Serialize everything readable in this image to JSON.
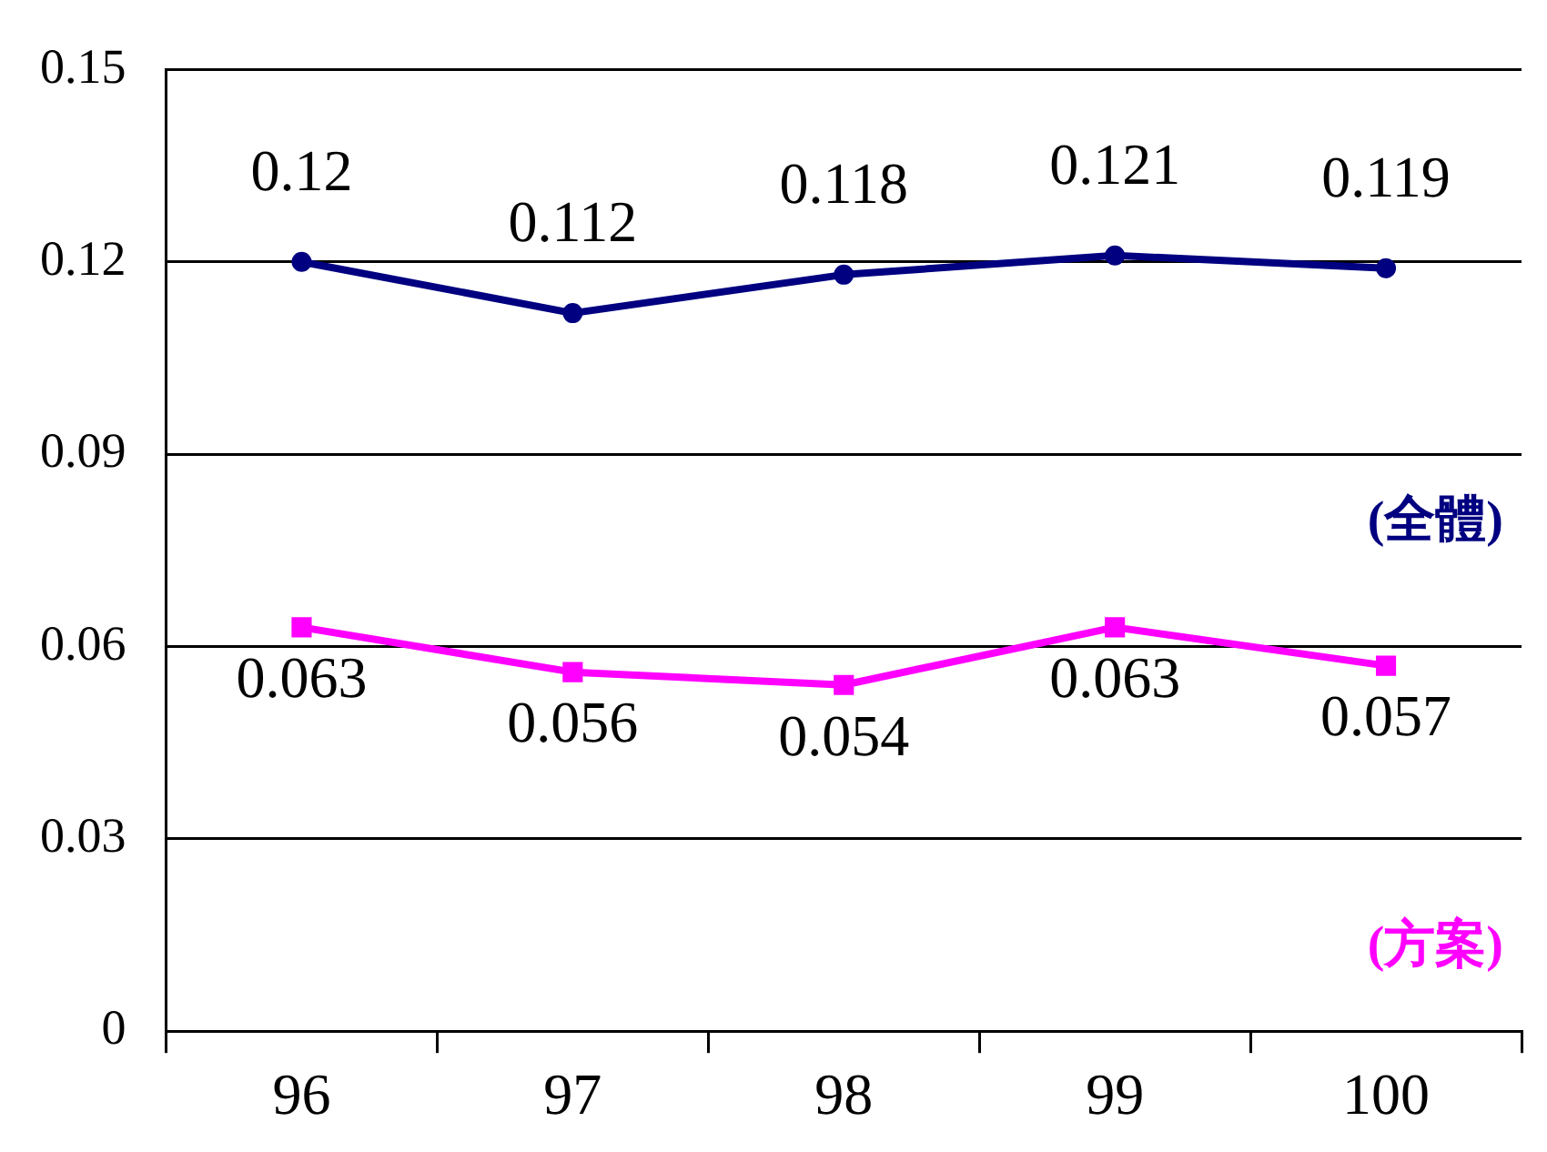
{
  "chart_data": {
    "type": "line",
    "categories": [
      "96",
      "97",
      "98",
      "99",
      "100"
    ],
    "series": [
      {
        "name": "(全體)",
        "color": "#000080",
        "values": [
          0.12,
          0.112,
          0.118,
          0.121,
          0.119
        ],
        "marker": "circle"
      },
      {
        "name": "(方案)",
        "color": "#ff00ff",
        "values": [
          0.063,
          0.056,
          0.054,
          0.063,
          0.057
        ],
        "marker": "square"
      }
    ],
    "ylim": [
      0,
      0.15
    ],
    "yticks": [
      0,
      0.03,
      0.06,
      0.09,
      0.12,
      0.15
    ],
    "grid": "y",
    "legend": false,
    "data_labels": true
  }
}
